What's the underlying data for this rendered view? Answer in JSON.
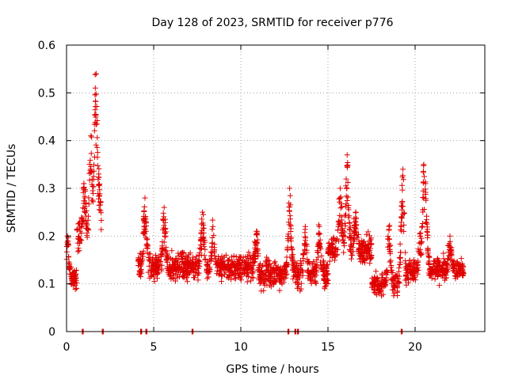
{
  "chart_data": {
    "type": "scatter",
    "title": "Day 128 of 2023, SRMTID for receiver p776",
    "xlabel": "GPS time / hours",
    "ylabel": "SRMTID / TECUs",
    "xlim": [
      0,
      24
    ],
    "ylim": [
      0,
      0.6
    ],
    "xticks": [
      0,
      5,
      10,
      15,
      20
    ],
    "xtick_labels": [
      "0",
      "5",
      "10",
      "15",
      "20"
    ],
    "yticks": [
      0,
      0.1,
      0.2,
      0.3,
      0.4,
      0.5,
      0.6
    ],
    "ytick_labels": [
      "0",
      "0.1",
      "0.2",
      "0.3",
      "0.4",
      "0.5",
      "0.6"
    ],
    "grid": true,
    "marker": "+",
    "color": "#e00000",
    "series": [
      {
        "name": "SRMTID",
        "segments": [
          {
            "x_start": 0.0,
            "x_end": 0.6,
            "baseline": 0.11,
            "spread": 0.035,
            "peaks": [
              [
                0.05,
                0.2
              ]
            ]
          },
          {
            "x_start": 0.6,
            "x_end": 2.0,
            "baseline": 0.2,
            "spread": 0.06,
            "peaks": [
              [
                1.0,
                0.31
              ],
              [
                1.4,
                0.41
              ],
              [
                1.65,
                0.51
              ],
              [
                1.7,
                0.54
              ],
              [
                1.85,
                0.33
              ]
            ]
          },
          {
            "x_start": 4.1,
            "x_end": 11.0,
            "baseline": 0.135,
            "spread": 0.045,
            "peaks": [
              [
                4.5,
                0.28
              ],
              [
                5.6,
                0.26
              ],
              [
                7.8,
                0.25
              ],
              [
                8.4,
                0.22
              ],
              [
                10.9,
                0.21
              ]
            ]
          },
          {
            "x_start": 11.0,
            "x_end": 15.0,
            "baseline": 0.12,
            "spread": 0.045,
            "peaks": [
              [
                12.8,
                0.3
              ],
              [
                13.7,
                0.22
              ],
              [
                14.5,
                0.22
              ]
            ]
          },
          {
            "x_start": 15.0,
            "x_end": 17.5,
            "baseline": 0.17,
            "spread": 0.05,
            "peaks": [
              [
                15.7,
                0.3
              ],
              [
                16.1,
                0.37
              ],
              [
                16.6,
                0.25
              ]
            ]
          },
          {
            "x_start": 17.5,
            "x_end": 19.5,
            "baseline": 0.1,
            "spread": 0.04,
            "peaks": [
              [
                18.5,
                0.22
              ],
              [
                19.3,
                0.34
              ],
              [
                19.25,
                0.27
              ]
            ]
          },
          {
            "x_start": 19.5,
            "x_end": 22.8,
            "baseline": 0.13,
            "spread": 0.04,
            "peaks": [
              [
                20.3,
                0.2
              ],
              [
                20.5,
                0.35
              ],
              [
                20.6,
                0.31
              ],
              [
                22.0,
                0.2
              ]
            ]
          }
        ]
      }
    ],
    "baseline_markers": {
      "description": "points lying on y = 0",
      "x": [
        0.9,
        2.05,
        4.25,
        4.55,
        7.2,
        12.7,
        13.1,
        13.25,
        19.2
      ]
    }
  }
}
